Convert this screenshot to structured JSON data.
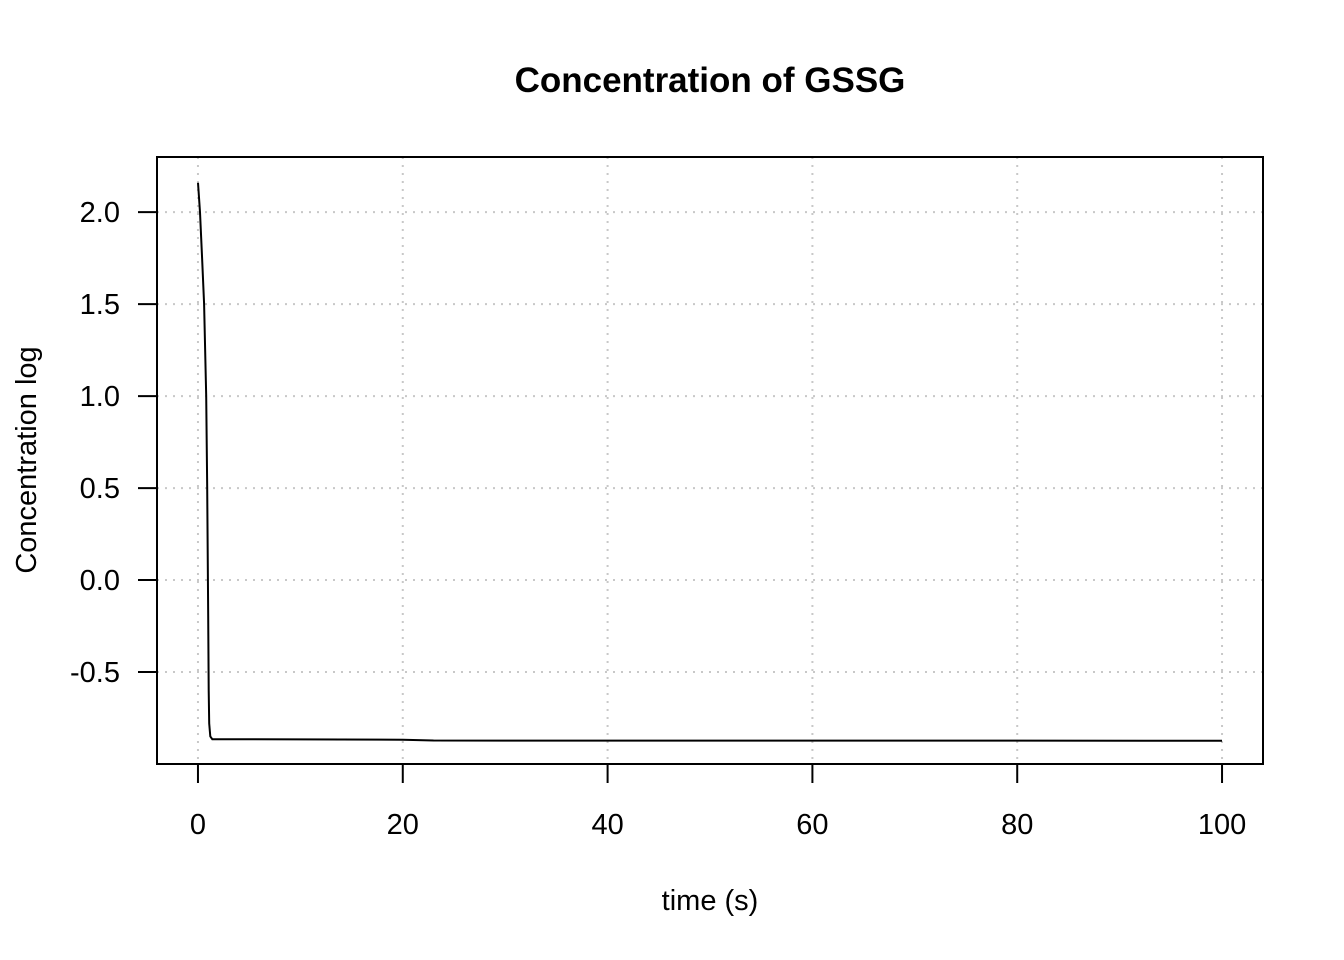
{
  "chart_data": {
    "type": "line",
    "title": "Concentration of GSSG",
    "xlabel": "time (s)",
    "ylabel": "Concentration log",
    "xlim": [
      -4,
      104
    ],
    "ylim": [
      -1.0,
      2.3
    ],
    "xticks": [
      0,
      20,
      40,
      60,
      80,
      100
    ],
    "xtick_labels": [
      "0",
      "20",
      "40",
      "60",
      "80",
      "100"
    ],
    "yticks": [
      -0.5,
      0.0,
      0.5,
      1.0,
      1.5,
      2.0
    ],
    "ytick_labels": [
      "-0.5",
      "0.0",
      "0.5",
      "1.0",
      "1.5",
      "2.0"
    ],
    "grid": true,
    "series": [
      {
        "x": [
          0,
          0.2,
          0.4,
          0.6,
          0.8,
          0.9,
          1.0,
          1.05,
          1.1,
          1.2,
          1.4,
          2,
          5,
          10,
          20,
          23,
          30,
          50,
          70,
          100
        ],
        "values": [
          2.16,
          2.0,
          1.75,
          1.5,
          1.0,
          0.5,
          -0.2,
          -0.6,
          -0.78,
          -0.85,
          -0.865,
          -0.865,
          -0.865,
          -0.866,
          -0.868,
          -0.872,
          -0.873,
          -0.873,
          -0.873,
          -0.874
        ]
      }
    ],
    "colors": {
      "line": "#000000",
      "grid": "#c8c8c8",
      "axis": "#000000"
    }
  }
}
